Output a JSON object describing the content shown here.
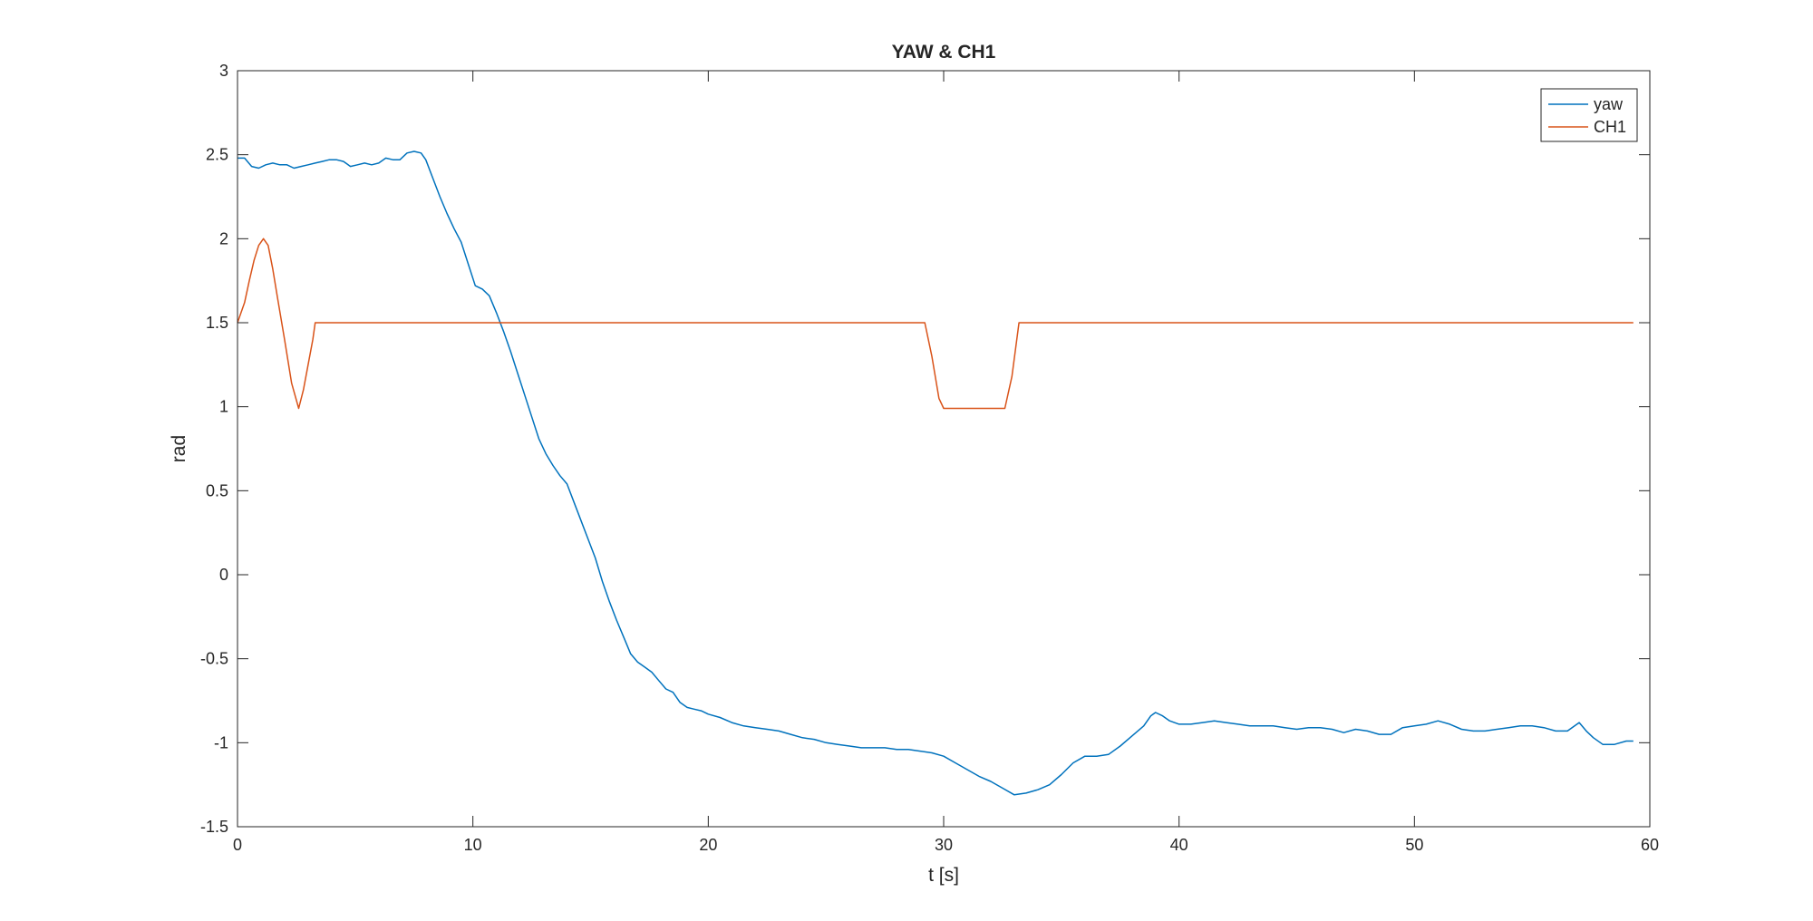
{
  "chart_data": {
    "type": "line",
    "title": "YAW & CH1",
    "xlabel": "t [s]",
    "ylabel": "rad",
    "xlim": [
      0,
      60
    ],
    "ylim": [
      -1.5,
      3
    ],
    "xticks": [
      0,
      10,
      20,
      30,
      40,
      50,
      60
    ],
    "yticks": [
      -1.5,
      -1,
      -0.5,
      0,
      0.5,
      1,
      1.5,
      2,
      2.5,
      3
    ],
    "xtick_labels": [
      "0",
      "10",
      "20",
      "30",
      "40",
      "50",
      "60"
    ],
    "ytick_labels": [
      "-1.5",
      "-1",
      "-0.5",
      "0",
      "0.5",
      "1",
      "1.5",
      "2",
      "2.5",
      "3"
    ],
    "grid": false,
    "legend_position": "top-right",
    "series": [
      {
        "name": "yaw",
        "color": "#0072BD",
        "x": [
          0,
          0.3,
          0.6,
          0.9,
          1.2,
          1.5,
          1.8,
          2.1,
          2.4,
          2.7,
          3.0,
          3.3,
          3.6,
          3.9,
          4.2,
          4.5,
          4.8,
          5.1,
          5.4,
          5.7,
          6.0,
          6.3,
          6.6,
          6.9,
          7.2,
          7.5,
          7.8,
          8.0,
          8.3,
          8.6,
          8.9,
          9.2,
          9.5,
          9.8,
          10.1,
          10.4,
          10.7,
          11.0,
          11.3,
          11.6,
          11.9,
          12.2,
          12.5,
          12.8,
          13.1,
          13.4,
          13.7,
          14.0,
          14.3,
          14.6,
          14.9,
          15.2,
          15.5,
          15.8,
          16.1,
          16.4,
          16.7,
          17.0,
          17.3,
          17.6,
          17.9,
          18.2,
          18.5,
          18.8,
          19.1,
          19.4,
          19.7,
          20.0,
          20.5,
          21.0,
          21.5,
          22.0,
          22.5,
          23.0,
          23.5,
          24.0,
          24.5,
          25.0,
          25.5,
          26.0,
          26.5,
          27.0,
          27.5,
          28.0,
          28.5,
          29.0,
          29.5,
          30.0,
          30.5,
          31.0,
          31.5,
          32.0,
          32.5,
          33.0,
          33.5,
          34.0,
          34.5,
          35.0,
          35.5,
          36.0,
          36.5,
          37.0,
          37.5,
          38.0,
          38.5,
          38.8,
          39.0,
          39.3,
          39.6,
          40.0,
          40.5,
          41.0,
          41.5,
          42.0,
          42.5,
          43.0,
          43.5,
          44.0,
          44.5,
          45.0,
          45.5,
          46.0,
          46.5,
          47.0,
          47.5,
          48.0,
          48.5,
          49.0,
          49.5,
          50.0,
          50.5,
          51.0,
          51.5,
          52.0,
          52.5,
          53.0,
          53.5,
          54.0,
          54.5,
          55.0,
          55.5,
          56.0,
          56.5,
          57.0,
          57.3,
          57.6,
          58.0,
          58.5,
          59.0,
          59.3
        ],
        "y": [
          2.48,
          2.48,
          2.43,
          2.42,
          2.44,
          2.45,
          2.44,
          2.44,
          2.42,
          2.43,
          2.44,
          2.45,
          2.46,
          2.47,
          2.47,
          2.46,
          2.43,
          2.44,
          2.45,
          2.44,
          2.45,
          2.48,
          2.47,
          2.47,
          2.51,
          2.52,
          2.51,
          2.47,
          2.36,
          2.25,
          2.15,
          2.06,
          1.98,
          1.85,
          1.72,
          1.7,
          1.66,
          1.56,
          1.45,
          1.33,
          1.2,
          1.07,
          0.94,
          0.81,
          0.72,
          0.65,
          0.59,
          0.54,
          0.43,
          0.32,
          0.21,
          0.1,
          -0.04,
          -0.16,
          -0.27,
          -0.37,
          -0.47,
          -0.52,
          -0.55,
          -0.58,
          -0.63,
          -0.68,
          -0.7,
          -0.76,
          -0.79,
          -0.8,
          -0.81,
          -0.83,
          -0.85,
          -0.88,
          -0.9,
          -0.91,
          -0.92,
          -0.93,
          -0.95,
          -0.97,
          -0.98,
          -1.0,
          -1.01,
          -1.02,
          -1.03,
          -1.03,
          -1.03,
          -1.04,
          -1.04,
          -1.05,
          -1.06,
          -1.08,
          -1.12,
          -1.16,
          -1.2,
          -1.23,
          -1.27,
          -1.31,
          -1.3,
          -1.28,
          -1.25,
          -1.19,
          -1.12,
          -1.08,
          -1.08,
          -1.07,
          -1.02,
          -0.96,
          -0.9,
          -0.84,
          -0.82,
          -0.84,
          -0.87,
          -0.89,
          -0.89,
          -0.88,
          -0.87,
          -0.88,
          -0.89,
          -0.9,
          -0.9,
          -0.9,
          -0.91,
          -0.92,
          -0.91,
          -0.91,
          -0.92,
          -0.94,
          -0.92,
          -0.93,
          -0.95,
          -0.95,
          -0.91,
          -0.9,
          -0.89,
          -0.87,
          -0.89,
          -0.92,
          -0.93,
          -0.93,
          -0.92,
          -0.91,
          -0.9,
          -0.9,
          -0.91,
          -0.93,
          -0.93,
          -0.88,
          -0.93,
          -0.97,
          -1.01,
          -1.01,
          -0.99,
          -0.99
        ]
      },
      {
        "name": "CH1",
        "color": "#D95319",
        "x": [
          0,
          0.3,
          0.5,
          0.7,
          0.9,
          1.1,
          1.3,
          1.5,
          1.7,
          2.0,
          2.3,
          2.6,
          2.8,
          3.0,
          3.2,
          3.3,
          29.2,
          29.5,
          29.8,
          30.0,
          32.6,
          32.9,
          33.2,
          59.3
        ],
        "y": [
          1.5,
          1.62,
          1.75,
          1.87,
          1.96,
          2.0,
          1.96,
          1.82,
          1.65,
          1.4,
          1.14,
          0.99,
          1.1,
          1.25,
          1.4,
          1.5,
          1.5,
          1.3,
          1.05,
          0.99,
          0.99,
          1.18,
          1.5,
          1.5
        ]
      }
    ]
  }
}
